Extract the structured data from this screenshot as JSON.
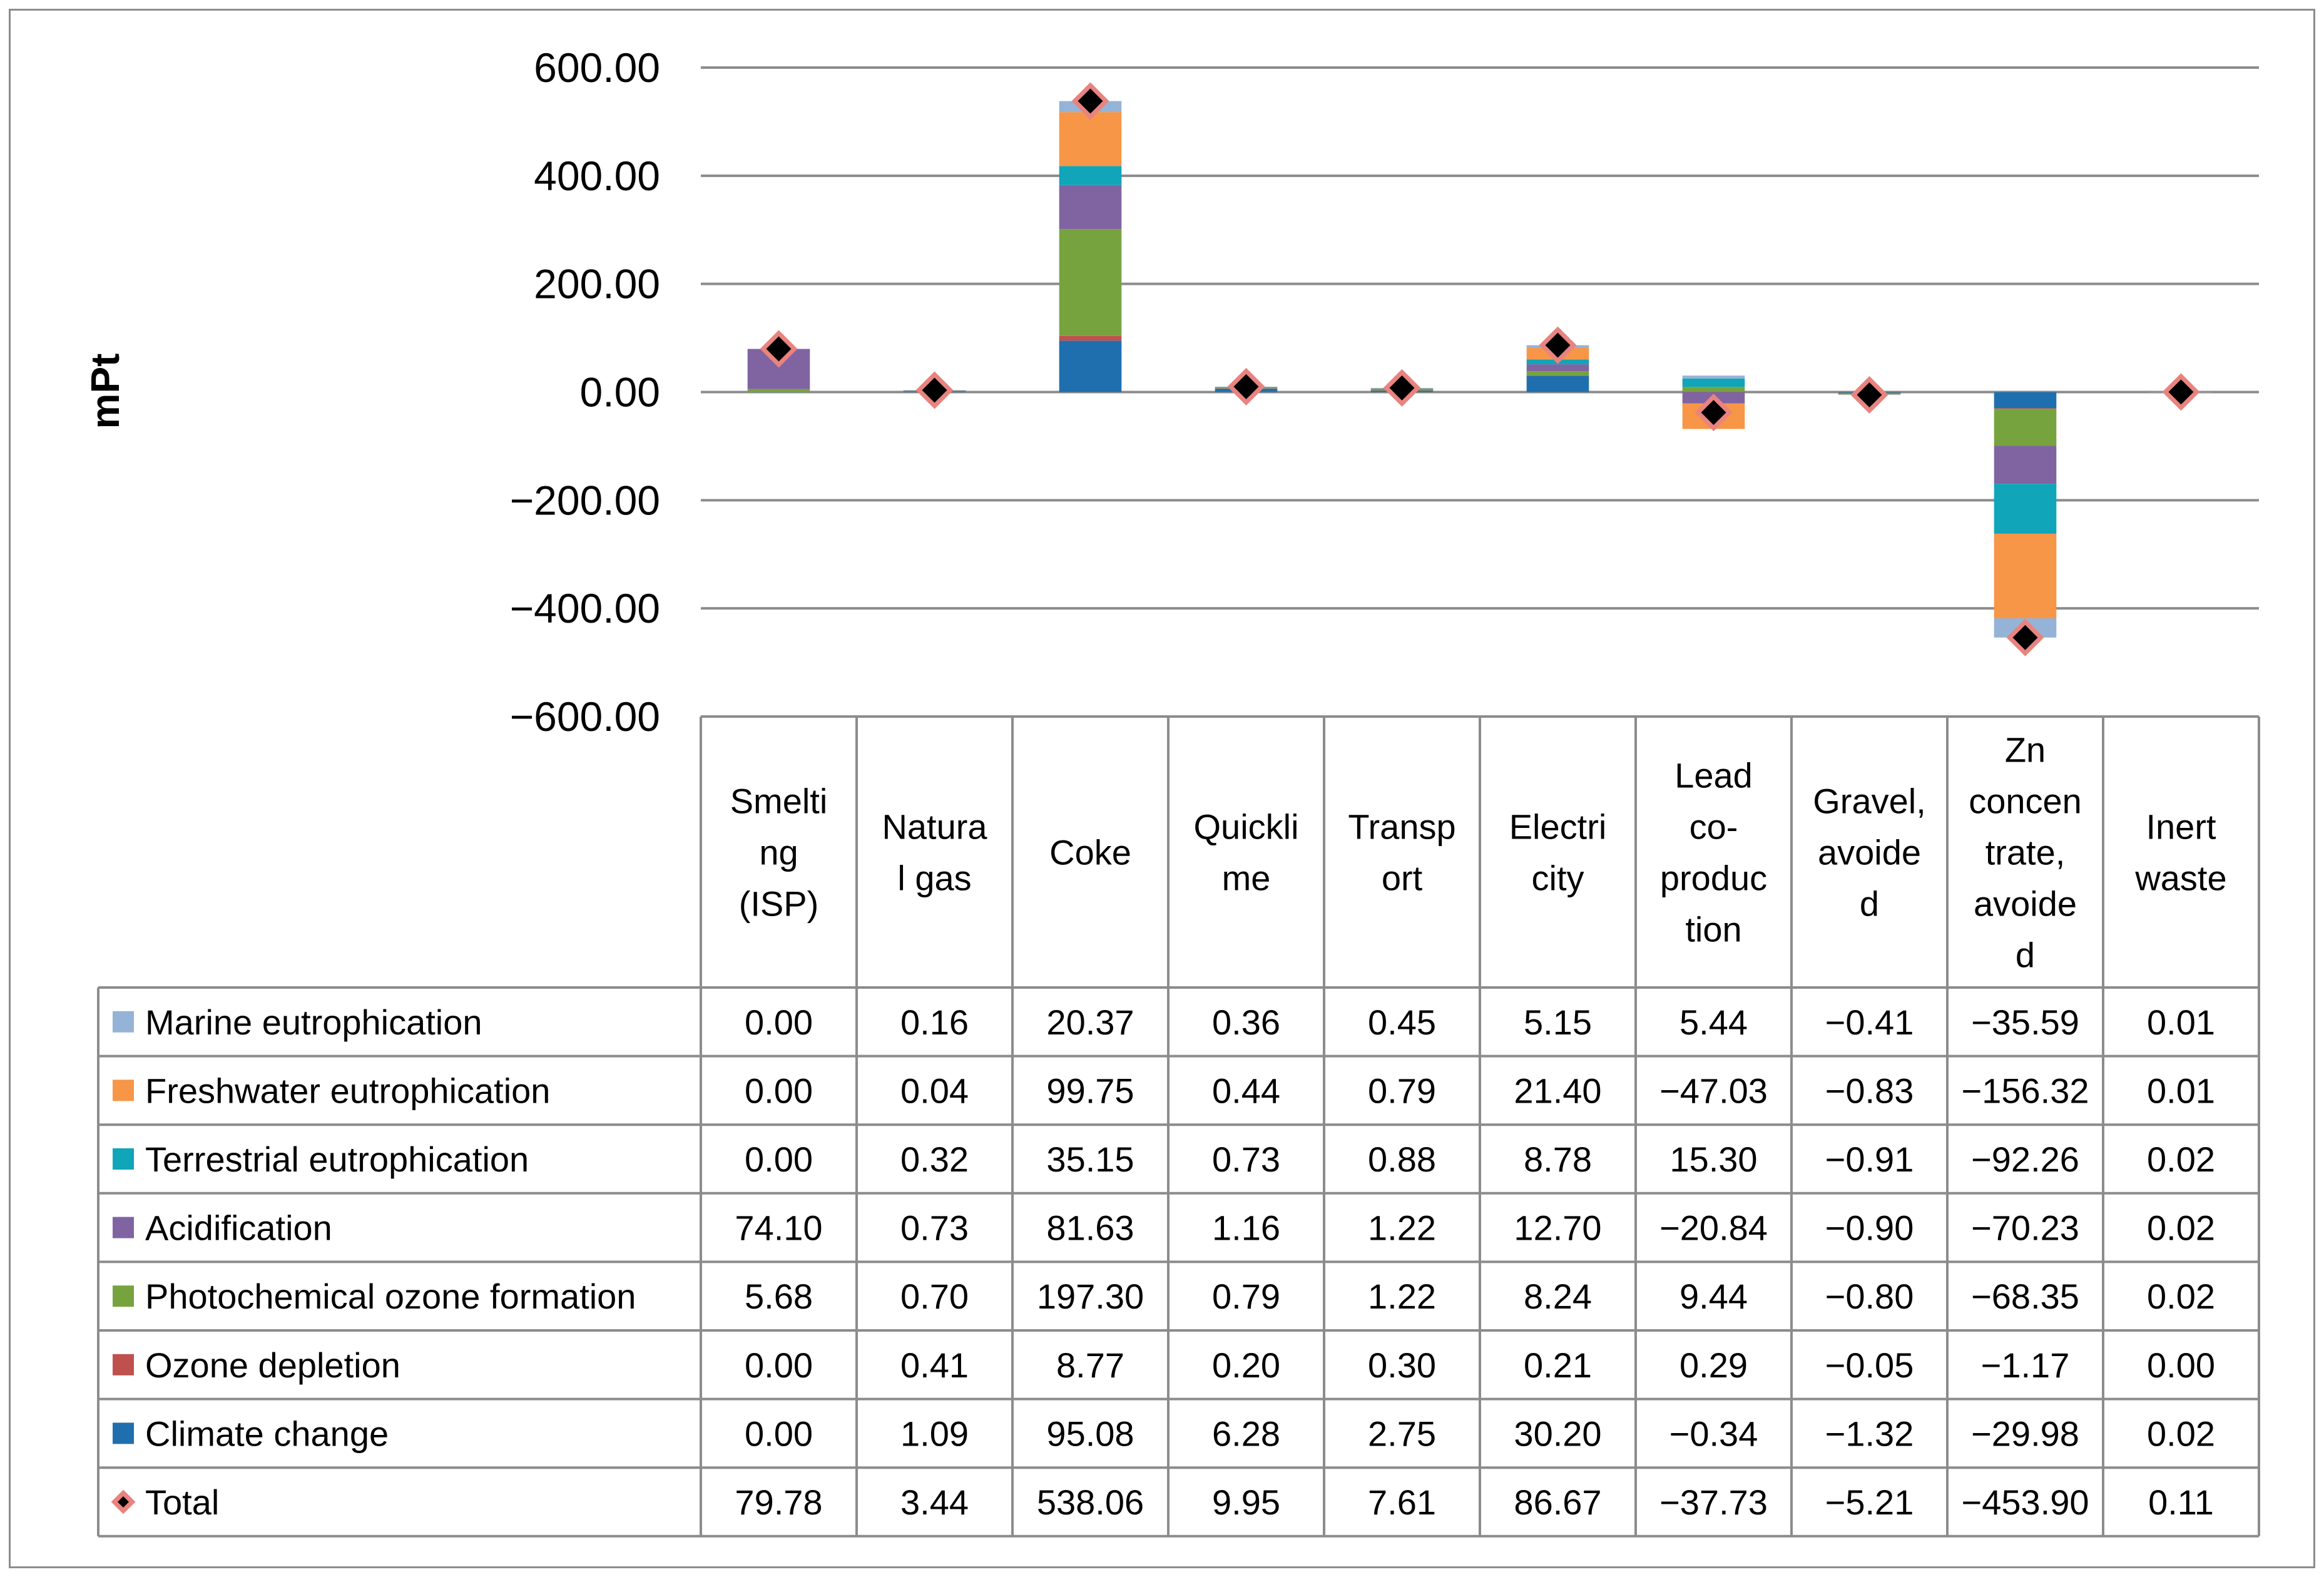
{
  "chart_data": {
    "type": "stacked-bar",
    "xlabel": "",
    "ylabel": "mPt",
    "ylim": [
      -600,
      600
    ],
    "yticks": [
      600,
      400,
      200,
      0,
      -200,
      -400,
      -600
    ],
    "ytick_labels": [
      "600.00",
      "400.00",
      "200.00",
      "0.00",
      "−200.00",
      "−400.00",
      "−600.00"
    ],
    "grid": true,
    "categories": [
      {
        "lines": [
          "Smelti",
          "ng",
          "(ISP)"
        ],
        "name": "Smelting (ISP)"
      },
      {
        "lines": [
          "Natura",
          "l gas"
        ],
        "name": "Natural gas"
      },
      {
        "lines": [
          "Coke"
        ],
        "name": "Coke"
      },
      {
        "lines": [
          "Quickli",
          "me"
        ],
        "name": "Quicklime"
      },
      {
        "lines": [
          "Transp",
          "ort"
        ],
        "name": "Transport"
      },
      {
        "lines": [
          "Electri",
          "city"
        ],
        "name": "Electricity"
      },
      {
        "lines": [
          "Lead",
          "co-",
          "produc",
          "tion"
        ],
        "name": "Lead co-production"
      },
      {
        "lines": [
          "Gravel,",
          "avoide",
          "d"
        ],
        "name": "Gravel, avoided"
      },
      {
        "lines": [
          "Zn",
          "concen",
          "trate,",
          "avoide",
          "d"
        ],
        "name": "Zn concentrate, avoided"
      },
      {
        "lines": [
          "Inert",
          "waste"
        ],
        "name": "Inert waste"
      }
    ],
    "series": [
      {
        "name": "Marine eutrophication",
        "color": "#95b3d7",
        "stack_order": 6,
        "values": [
          0.0,
          0.16,
          20.37,
          0.36,
          0.45,
          5.15,
          5.44,
          -0.41,
          -35.59,
          0.01
        ],
        "labels": [
          "0.00",
          "0.16",
          "20.37",
          "0.36",
          "0.45",
          "5.15",
          "5.44",
          "−0.41",
          "−35.59",
          "0.01"
        ]
      },
      {
        "name": "Freshwater eutrophication",
        "color": "#f79646",
        "stack_order": 5,
        "values": [
          0.0,
          0.04,
          99.75,
          0.44,
          0.79,
          21.4,
          -47.03,
          -0.83,
          -156.32,
          0.01
        ],
        "labels": [
          "0.00",
          "0.04",
          "99.75",
          "0.44",
          "0.79",
          "21.40",
          "−47.03",
          "−0.83",
          "−156.32",
          "0.01"
        ]
      },
      {
        "name": "Terrestrial eutrophication",
        "color": "#10a5b8",
        "stack_order": 4,
        "values": [
          0.0,
          0.32,
          35.15,
          0.73,
          0.88,
          8.78,
          15.3,
          -0.91,
          -92.26,
          0.02
        ],
        "labels": [
          "0.00",
          "0.32",
          "35.15",
          "0.73",
          "0.88",
          "8.78",
          "15.30",
          "−0.91",
          "−92.26",
          "0.02"
        ]
      },
      {
        "name": "Acidification",
        "color": "#8064a2",
        "stack_order": 3,
        "values": [
          74.1,
          0.73,
          81.63,
          1.16,
          1.22,
          12.7,
          -20.84,
          -0.9,
          -70.23,
          0.02
        ],
        "labels": [
          "74.10",
          "0.73",
          "81.63",
          "1.16",
          "1.22",
          "12.70",
          "−20.84",
          "−0.90",
          "−70.23",
          "0.02"
        ]
      },
      {
        "name": "Photochemical ozone formation",
        "color": "#77a33f",
        "stack_order": 2,
        "values": [
          5.68,
          0.7,
          197.3,
          0.79,
          1.22,
          8.24,
          9.44,
          -0.8,
          -68.35,
          0.02
        ],
        "labels": [
          "5.68",
          "0.70",
          "197.30",
          "0.79",
          "1.22",
          "8.24",
          "9.44",
          "−0.80",
          "−68.35",
          "0.02"
        ]
      },
      {
        "name": "Ozone depletion",
        "color": "#c0504d",
        "stack_order": 1,
        "values": [
          0.0,
          0.41,
          8.77,
          0.2,
          0.3,
          0.21,
          0.29,
          -0.05,
          -1.17,
          0.0
        ],
        "labels": [
          "0.00",
          "0.41",
          "8.77",
          "0.20",
          "0.30",
          "0.21",
          "0.29",
          "−0.05",
          "−1.17",
          "0.00"
        ]
      },
      {
        "name": "Climate change",
        "color": "#1f6fae",
        "stack_order": 0,
        "values": [
          0.0,
          1.09,
          95.08,
          6.28,
          2.75,
          30.2,
          -0.34,
          -1.32,
          -29.98,
          0.02
        ],
        "labels": [
          "0.00",
          "1.09",
          "95.08",
          "6.28",
          "2.75",
          "30.20",
          "−0.34",
          "−1.32",
          "−29.98",
          "0.02"
        ]
      }
    ],
    "total": {
      "name": "Total",
      "marker": "diamond",
      "marker_fill": "#000000",
      "marker_edge": "#e8837f",
      "values": [
        79.78,
        3.44,
        538.06,
        9.95,
        7.61,
        86.67,
        -37.73,
        -5.21,
        -453.9,
        0.11
      ],
      "labels": [
        "79.78",
        "3.44",
        "538.06",
        "9.95",
        "7.61",
        "86.67",
        "−37.73",
        "−5.21",
        "−453.90",
        "0.11"
      ]
    }
  }
}
